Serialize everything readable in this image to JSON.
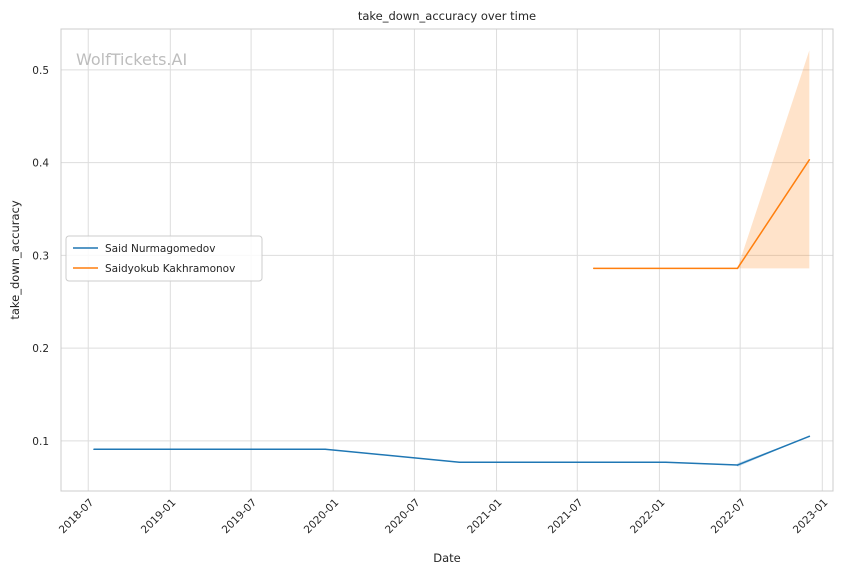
{
  "watermark": "WolfTickets.AI",
  "chart_data": {
    "type": "line",
    "title": "take_down_accuracy over time",
    "xlabel": "Date",
    "ylabel": "take_down_accuracy",
    "x_ticks": [
      "2018-07",
      "2019-01",
      "2019-07",
      "2020-01",
      "2020-07",
      "2021-01",
      "2021-07",
      "2022-01",
      "2022-07",
      "2023-01"
    ],
    "y_ticks": [
      "0.1",
      "0.2",
      "0.3",
      "0.4",
      "0.5"
    ],
    "xlim": [
      "2018-05-01",
      "2023-01-25"
    ],
    "ylim": [
      0.046,
      0.544
    ],
    "grid": true,
    "legend_position": "center-left",
    "series": [
      {
        "name": "Said Nurmagomedov",
        "color": "#1f77b4",
        "points": [
          {
            "x": "2018-07-14",
            "y": 0.091
          },
          {
            "x": "2019-12-14",
            "y": 0.091
          },
          {
            "x": "2020-10-10",
            "y": 0.077
          },
          {
            "x": "2022-01-15",
            "y": 0.077
          },
          {
            "x": "2022-06-25",
            "y": 0.074
          },
          {
            "x": "2022-12-03",
            "y": 0.105
          }
        ],
        "band": [
          {
            "x": "2022-06-25",
            "low": 0.072,
            "high": 0.076
          },
          {
            "x": "2022-12-03",
            "low": 0.105,
            "high": 0.105
          }
        ]
      },
      {
        "name": "Saidyokub Kakhramonov",
        "color": "#ff7f0e",
        "points": [
          {
            "x": "2021-08-07",
            "y": 0.286
          },
          {
            "x": "2022-06-25",
            "y": 0.286
          },
          {
            "x": "2022-12-03",
            "y": 0.403
          }
        ],
        "band": [
          {
            "x": "2022-06-25",
            "low": 0.286,
            "high": 0.286
          },
          {
            "x": "2022-12-03",
            "low": 0.286,
            "high": 0.521
          }
        ]
      }
    ]
  }
}
